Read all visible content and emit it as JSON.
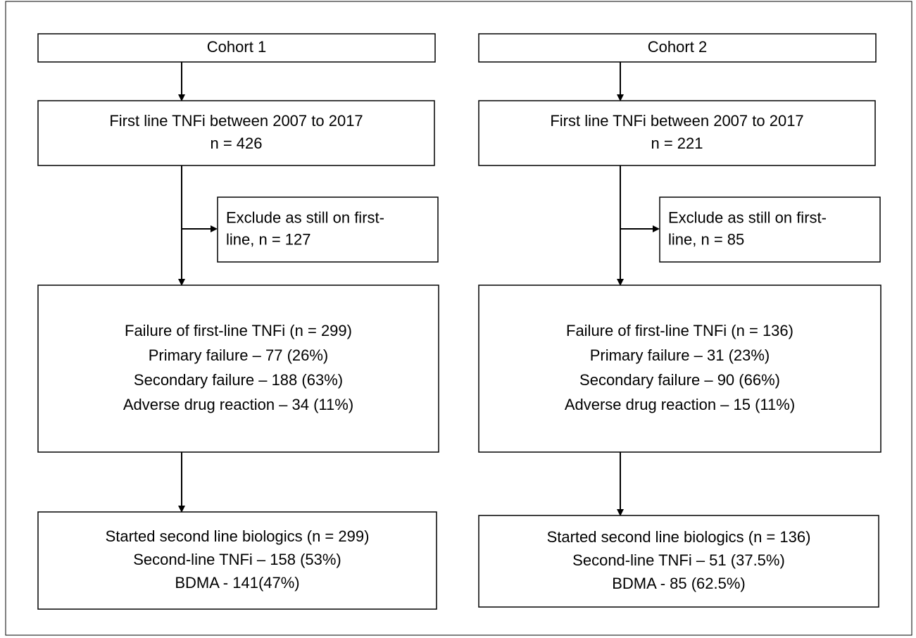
{
  "cohorts": [
    {
      "header": "Cohort 1",
      "first_line": [
        "First line TNFi between 2007 to 2017",
        "n = 426"
      ],
      "exclude": [
        "Exclude as still on first-",
        "line, n = 127"
      ],
      "failure": [
        "Failure of first-line TNFi (n = 299)",
        "Primary failure – 77 (26%)",
        "Secondary failure – 188 (63%)",
        "Adverse drug reaction – 34 (11%)"
      ],
      "started": [
        "Started second line biologics (n = 299)",
        "Second-line TNFi – 158 (53%)",
        "BDMA - 141(47%)"
      ]
    },
    {
      "header": "Cohort 2",
      "first_line": [
        "First line TNFi between 2007 to 2017",
        "n = 221"
      ],
      "exclude": [
        "Exclude as still on first-",
        "line, n = 85"
      ],
      "failure": [
        "Failure of first-line TNFi (n = 136)",
        "Primary failure – 31 (23%)",
        "Secondary failure – 90 (66%)",
        "Adverse drug reaction – 15 (11%)"
      ],
      "started": [
        "Started second line biologics (n = 136)",
        "Second-line TNFi – 51 (37.5%)",
        "BDMA - 85 (62.5%)"
      ]
    }
  ]
}
